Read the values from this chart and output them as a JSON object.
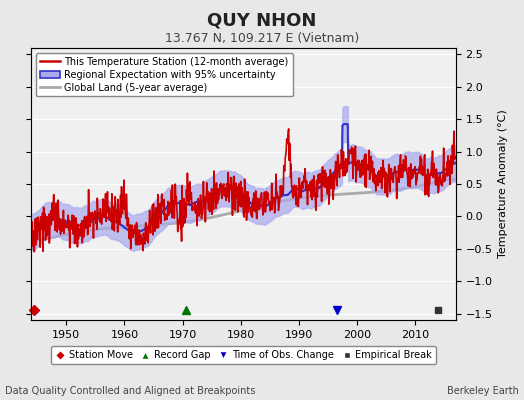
{
  "title": "QUY NHON",
  "subtitle": "13.767 N, 109.217 E (Vietnam)",
  "xlabel_bottom": "Data Quality Controlled and Aligned at Breakpoints",
  "xlabel_right": "Berkeley Earth",
  "ylabel": "Temperature Anomaly (°C)",
  "xlim": [
    1944,
    2017
  ],
  "ylim": [
    -1.6,
    2.6
  ],
  "yticks": [
    -1.5,
    -1.0,
    -0.5,
    0.0,
    0.5,
    1.0,
    1.5,
    2.0,
    2.5
  ],
  "xticks": [
    1950,
    1960,
    1970,
    1980,
    1990,
    2000,
    2010
  ],
  "bg_color": "#e8e8e8",
  "plot_bg_color": "#f0f0f0",
  "grid_color": "#ffffff",
  "station_color": "#cc0000",
  "regional_line_color": "#3333cc",
  "regional_fill_color": "#aaaaee",
  "global_color": "#aaaaaa",
  "legend_items": [
    {
      "label": "This Temperature Station (12-month average)",
      "color": "#cc0000",
      "lw": 1.8,
      "ls": "-"
    },
    {
      "label": "Regional Expectation with 95% uncertainty",
      "color": "#3333cc",
      "lw": 1.5,
      "ls": "-"
    },
    {
      "label": "Global Land (5-year average)",
      "color": "#aaaaaa",
      "lw": 2.0,
      "ls": "-"
    }
  ],
  "marker_items": [
    {
      "label": "Station Move",
      "marker": "D",
      "color": "#cc0000"
    },
    {
      "label": "Record Gap",
      "marker": "^",
      "color": "#007700"
    },
    {
      "label": "Time of Obs. Change",
      "marker": "v",
      "color": "#0000cc"
    },
    {
      "label": "Empirical Break",
      "marker": "s",
      "color": "#333333"
    }
  ],
  "station_move_x": [
    1944.5
  ],
  "record_gap_x": [
    1970.5
  ],
  "time_obs_x": [
    1996.5
  ],
  "empirical_break_x": [
    2014.0
  ],
  "marker_y": -1.45
}
